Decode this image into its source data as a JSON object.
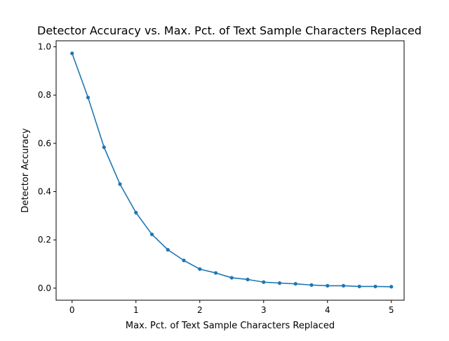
{
  "chart_data": {
    "type": "line",
    "title": "Detector Accuracy vs. Max. Pct. of Text Sample Characters Replaced",
    "xlabel": "Max. Pct. of Text Sample Characters Replaced",
    "ylabel": "Detector Accuracy",
    "xlim": [
      -0.25,
      5.2
    ],
    "ylim": [
      -0.05,
      1.025
    ],
    "xticks": [
      0,
      1,
      2,
      3,
      4,
      5
    ],
    "xtick_labels": [
      "0",
      "1",
      "2",
      "3",
      "4",
      "5"
    ],
    "yticks": [
      0.0,
      0.2,
      0.4,
      0.6,
      0.8,
      1.0
    ],
    "ytick_labels": [
      "0.0",
      "0.2",
      "0.4",
      "0.6",
      "0.8",
      "1.0"
    ],
    "grid": false,
    "color": "#1f77b4",
    "x": [
      0,
      0.25,
      0.5,
      0.75,
      1.0,
      1.25,
      1.5,
      1.75,
      2.0,
      2.25,
      2.5,
      2.75,
      3.0,
      3.25,
      3.5,
      3.75,
      4.0,
      4.25,
      4.5,
      4.75,
      5.0
    ],
    "series": [
      {
        "values": [
          0.973,
          0.79,
          0.584,
          0.431,
          0.313,
          0.223,
          0.159,
          0.115,
          0.079,
          0.063,
          0.043,
          0.036,
          0.025,
          0.021,
          0.018,
          0.013,
          0.01,
          0.01,
          0.007,
          0.007,
          0.006
        ]
      }
    ]
  }
}
